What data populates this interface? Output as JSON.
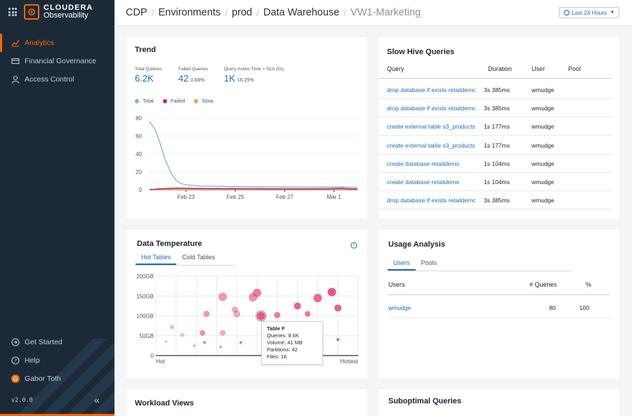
{
  "app": {
    "brand": "CLOUDERA",
    "product": "Observability",
    "version": "v2.0.0"
  },
  "nav": {
    "items": [
      {
        "label": "Analytics",
        "icon": "chart-line-icon"
      },
      {
        "label": "Financial Governance",
        "icon": "card-icon"
      },
      {
        "label": "Access Control",
        "icon": "user-icon"
      }
    ],
    "bottom": {
      "get_started": "Get Started",
      "help": "Help",
      "user": "Gabor Toth",
      "user_initial": "G"
    }
  },
  "breadcrumb": [
    "CDP",
    "Environments",
    "prod",
    "Data Warehouse",
    "VW1-Marketing"
  ],
  "time_range": "Last 24 Hours",
  "trend": {
    "title": "Trend",
    "stats": [
      {
        "label": "Total Queries",
        "value": "6.2K",
        "sub": ""
      },
      {
        "label": "Failed Queries",
        "value": "42",
        "sub": "0.68%"
      },
      {
        "label": "Query Active Time > SLA (5s)",
        "value": "1K",
        "sub": "16.25%"
      }
    ],
    "legend": [
      {
        "label": "Total",
        "color": "#7fb0df"
      },
      {
        "label": "Failed",
        "color": "#b0317f"
      },
      {
        "label": "Slow",
        "color": "#f0a040"
      }
    ]
  },
  "slow_queries": {
    "title": "Slow Hive Queries",
    "columns": [
      "Query",
      "Duration",
      "User",
      "Pool"
    ],
    "rows": [
      {
        "query": "drop database if exists retaildemo cascade",
        "duration": "3s 385ms",
        "user": "wmudge",
        "pool": ""
      },
      {
        "query": "drop database if exists retaildemo cascade",
        "duration": "3s 385ms",
        "user": "wmudge",
        "pool": ""
      },
      {
        "query": "create external table s3_products",
        "duration": "1s 177ms",
        "user": "wmudge",
        "pool": ""
      },
      {
        "query": "create external table s3_products",
        "duration": "1s 177ms",
        "user": "wmudge",
        "pool": ""
      },
      {
        "query": "create database retaildemo",
        "duration": "1s 104ms",
        "user": "wmudge",
        "pool": ""
      },
      {
        "query": "create database retaildemo",
        "duration": "1s 104ms",
        "user": "wmudge",
        "pool": ""
      },
      {
        "query": "drop database if exists retaildemo cascade",
        "duration": "3s 385ms",
        "user": "wmudge",
        "pool": ""
      }
    ]
  },
  "data_temperature": {
    "title": "Data Temperature",
    "tabs": [
      "Hot Tables",
      "Cold Tables"
    ],
    "x_labels": [
      "Hot",
      "Hottest"
    ],
    "tooltip": {
      "title": "Table F",
      "lines": [
        "Queries: 8.6K",
        "Volume: 41 MB",
        "Partitions: 42",
        "Files: 1K"
      ]
    }
  },
  "usage": {
    "title": "Usage Analysis",
    "tabs": [
      "Users",
      "Pools"
    ],
    "columns": [
      "Users",
      "# Queries",
      "%"
    ],
    "rows": [
      {
        "user": "wmudge",
        "queries": "80",
        "percent": "100"
      }
    ]
  },
  "workload_views": {
    "title": "Workload Views"
  },
  "suboptimal": {
    "title": "Suboptimal Queries"
  },
  "chart_data": [
    {
      "type": "line",
      "title": "Trend",
      "x": [
        0,
        1,
        2,
        3,
        4,
        5,
        6,
        7,
        8,
        9,
        10,
        11,
        12,
        13,
        14,
        15,
        16,
        17,
        18,
        19,
        20,
        21,
        22,
        23,
        24,
        25,
        26,
        27,
        28,
        29,
        30,
        31,
        32,
        33,
        34,
        35,
        36,
        37,
        38,
        39,
        40
      ],
      "x_tick_labels": [
        {
          "at": 7,
          "label": "Feb 23"
        },
        {
          "at": 16.5,
          "label": "Feb 25"
        },
        {
          "at": 26,
          "label": "Feb 27"
        },
        {
          "at": 35.5,
          "label": "Mar 1"
        }
      ],
      "ylim": [
        0,
        80
      ],
      "y_ticks": [
        0,
        20,
        40,
        60,
        80
      ],
      "series": [
        {
          "name": "Total",
          "color": "#7fb0df",
          "values": [
            76,
            68,
            52,
            34,
            20,
            11,
            7,
            5.5,
            5,
            4.5,
            4,
            4,
            4,
            3.8,
            3.8,
            3.5,
            3.5,
            3.5,
            3.4,
            3.4,
            3.3,
            3.3,
            3.3,
            3.2,
            3.2,
            3.2,
            3.1,
            3.1,
            3.1,
            3.0,
            3.0,
            3.0,
            3.0,
            2.9,
            2.9,
            3.0,
            3.0,
            3.2,
            2.8,
            2.7,
            2.6
          ]
        },
        {
          "name": "Failed",
          "color": "#b0317f",
          "values": [
            0.3,
            0.5,
            1.0,
            1.2,
            1.5,
            1.8,
            1.7,
            1.6,
            1.5,
            1.4,
            1.4,
            1.3,
            1.3,
            1.3,
            1.2,
            1.2,
            1.2,
            1.2,
            1.1,
            1.1,
            1.1,
            1.1,
            1.1,
            1.0,
            1.0,
            1.0,
            1.0,
            1.0,
            1.0,
            1.0,
            1.0,
            1.0,
            1.0,
            1.0,
            1.0,
            1.2,
            1.4,
            1.6,
            1.1,
            0.9,
            0.8
          ]
        },
        {
          "name": "Slow",
          "color": "#f0a040",
          "values": [
            0,
            0,
            0.1,
            0.2,
            0.3,
            0.3,
            0.3,
            0.3,
            0.3,
            0.3,
            0.3,
            0.3,
            0.3,
            0.3,
            0.3,
            0.3,
            0.3,
            0.3,
            0.3,
            0.3,
            0.3,
            0.3,
            0.3,
            0.3,
            0.3,
            0.3,
            0.3,
            0.3,
            0.3,
            0.3,
            0.3,
            0.3,
            0.3,
            0.3,
            0.3,
            0.3,
            0.3,
            0.3,
            0.3,
            0.3,
            0.3
          ]
        }
      ]
    },
    {
      "type": "scatter",
      "title": "Data Temperature",
      "xlabel_left": "Hot",
      "xlabel_right": "Hottest",
      "xlim": [
        0,
        10
      ],
      "ylim": [
        0,
        200
      ],
      "y_tick_labels": [
        "0",
        "50GB",
        "100GB",
        "150GB",
        "200GB"
      ],
      "y_ticks": [
        0,
        50,
        100,
        150,
        200
      ],
      "points": [
        {
          "x": 0.5,
          "y": 35,
          "size": 2,
          "opacity": 0.35
        },
        {
          "x": 0.8,
          "y": 72,
          "size": 3,
          "opacity": 0.4
        },
        {
          "x": 1.3,
          "y": 52,
          "size": 3,
          "opacity": 0.35
        },
        {
          "x": 1.9,
          "y": 25,
          "size": 2,
          "opacity": 0.45
        },
        {
          "x": 2.3,
          "y": 57,
          "size": 4,
          "opacity": 0.6
        },
        {
          "x": 2.4,
          "y": 33,
          "size": 2,
          "opacity": 0.7
        },
        {
          "x": 2.5,
          "y": 105,
          "size": 4.5,
          "opacity": 0.55
        },
        {
          "x": 3.2,
          "y": 22,
          "size": 2,
          "opacity": 0.55
        },
        {
          "x": 3.3,
          "y": 148,
          "size": 6,
          "opacity": 0.55
        },
        {
          "x": 3.3,
          "y": 57,
          "size": 4,
          "opacity": 0.45
        },
        {
          "x": 3.9,
          "y": 116,
          "size": 4.5,
          "opacity": 0.45
        },
        {
          "x": 4.0,
          "y": 105,
          "size": 5,
          "opacity": 0.45
        },
        {
          "x": 4.2,
          "y": 33,
          "size": 2,
          "opacity": 0.75
        },
        {
          "x": 4.8,
          "y": 147,
          "size": 6,
          "opacity": 0.6
        },
        {
          "x": 5.0,
          "y": 158,
          "size": 6,
          "opacity": 0.7
        },
        {
          "x": 5.2,
          "y": 100,
          "size": 6,
          "opacity": 0.9
        },
        {
          "x": 6.0,
          "y": 102,
          "size": 4.5,
          "opacity": 0.7
        },
        {
          "x": 7.0,
          "y": 125,
          "size": 5,
          "opacity": 0.85
        },
        {
          "x": 7.5,
          "y": 105,
          "size": 4,
          "opacity": 0.75
        },
        {
          "x": 8.0,
          "y": 145,
          "size": 6,
          "opacity": 0.8
        },
        {
          "x": 8.7,
          "y": 160,
          "size": 6,
          "opacity": 0.9
        },
        {
          "x": 9.0,
          "y": 120,
          "size": 5,
          "opacity": 0.85
        },
        {
          "x": 9.0,
          "y": 40,
          "size": 2,
          "opacity": 0.9
        },
        {
          "x": 6.8,
          "y": 75,
          "size": 3,
          "opacity": 0.9
        }
      ]
    }
  ]
}
